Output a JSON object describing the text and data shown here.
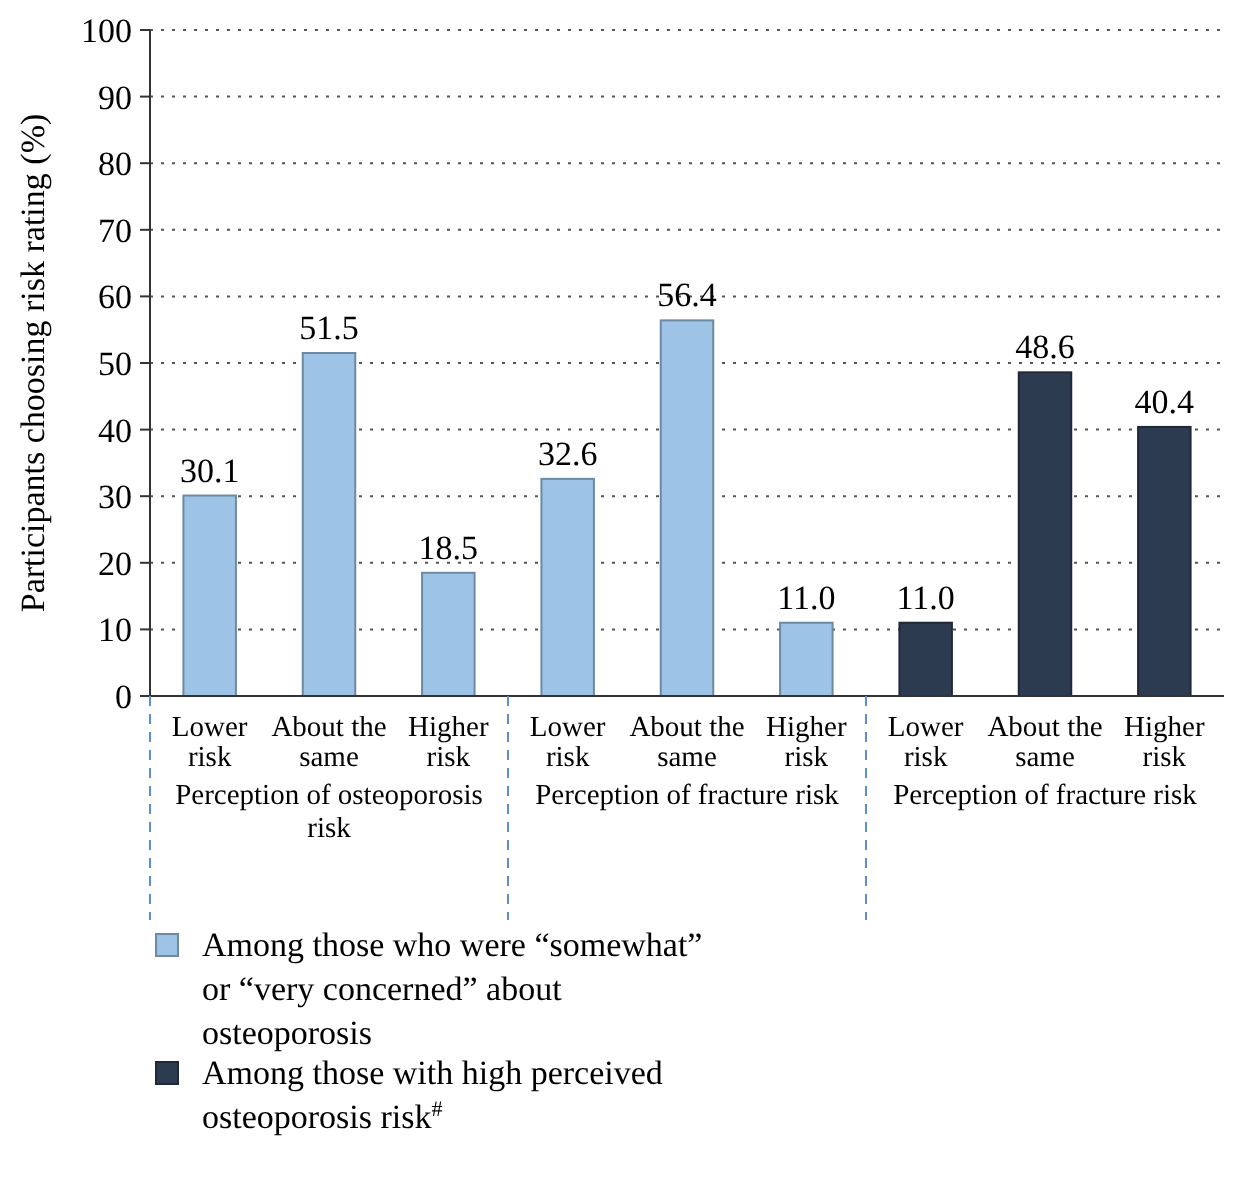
{
  "chart_data": {
    "type": "bar",
    "ylabel": "Participants choosing risk rating (%)",
    "categories": [
      "Lower risk",
      "About the same",
      "Higher risk",
      "Lower risk",
      "About the same",
      "Higher risk",
      "Lower risk",
      "About the same",
      "Higher risk"
    ],
    "series": [
      {
        "name": "Among those who were “somewhat” or “very concerned” about osteoporosis",
        "color": "#9dc3e6",
        "values": [
          30.1,
          51.5,
          18.5,
          32.6,
          56.4,
          11.0,
          null,
          null,
          null
        ],
        "value_labels": [
          "30.1",
          "51.5",
          "18.5",
          "32.6",
          "56.4",
          "11.0",
          null,
          null,
          null
        ]
      },
      {
        "name": "Among those with high perceived osteoporosis risk$^{#}$",
        "color": "#2c3b50",
        "values": [
          null,
          null,
          null,
          null,
          null,
          null,
          11.0,
          48.6,
          40.4
        ],
        "value_labels": [
          null,
          null,
          null,
          null,
          null,
          null,
          "11.0",
          "48.6",
          "40.4"
        ]
      }
    ],
    "annotations": [
      "Perception of osteoporosis risk",
      "Perception of fracture risk",
      "Perception of fracture risk"
    ],
    "ylim": [
      0,
      100
    ],
    "yticks": [
      0,
      10,
      20,
      30,
      40,
      50,
      60,
      70,
      80,
      90,
      100
    ],
    "grid": "y",
    "legend": "bottom"
  }
}
